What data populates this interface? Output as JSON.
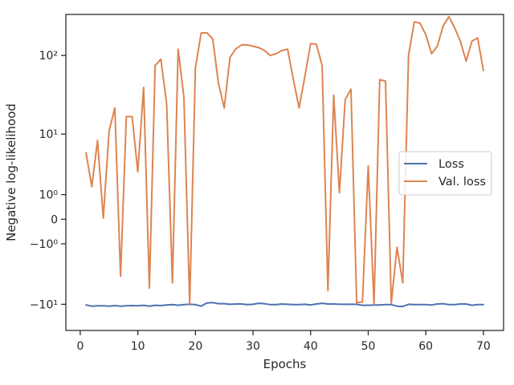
{
  "chart_data": {
    "type": "line",
    "title": "",
    "xlabel": "Epochs",
    "ylabel": "Negative log-likelihood",
    "yscale": "symlog",
    "xlim": [
      -2.5,
      73.5
    ],
    "ylim": [
      -22,
      320
    ],
    "x_ticks": [
      0,
      10,
      20,
      30,
      40,
      50,
      60,
      70
    ],
    "x_tick_labels": [
      "0",
      "10",
      "20",
      "30",
      "40",
      "50",
      "60",
      "70"
    ],
    "y_ticks": [
      -10,
      -1,
      0,
      1,
      10,
      100
    ],
    "y_tick_labels": [
      "−10¹",
      "−10⁰",
      "0",
      "10⁰",
      "10¹",
      "10²"
    ],
    "grid": false,
    "legend_position": "center-right",
    "series": [
      {
        "name": "Loss",
        "color": "#4c72b0",
        "x": [
          1,
          2,
          3,
          4,
          5,
          6,
          7,
          8,
          9,
          10,
          11,
          12,
          13,
          14,
          15,
          16,
          17,
          18,
          19,
          20,
          21,
          22,
          23,
          24,
          25,
          26,
          27,
          28,
          29,
          30,
          31,
          32,
          33,
          34,
          35,
          36,
          37,
          38,
          39,
          40,
          41,
          42,
          43,
          44,
          45,
          46,
          47,
          48,
          49,
          50,
          51,
          52,
          53,
          54,
          55,
          56,
          57,
          58,
          59,
          60,
          61,
          62,
          63,
          64,
          65,
          66,
          67,
          68,
          69,
          70
        ],
        "values": [
          -10.2,
          -10.6,
          -10.5,
          -10.5,
          -10.6,
          -10.4,
          -10.6,
          -10.5,
          -10.4,
          -10.5,
          -10.3,
          -10.6,
          -10.3,
          -10.4,
          -10.2,
          -10.1,
          -10.3,
          -10.1,
          -10.0,
          -10.1,
          -10.6,
          -9.6,
          -9.5,
          -9.8,
          -9.8,
          -10.0,
          -9.9,
          -9.9,
          -10.1,
          -10.0,
          -9.7,
          -9.8,
          -10.1,
          -10.1,
          -9.9,
          -10.0,
          -10.1,
          -10.1,
          -10.0,
          -10.2,
          -9.9,
          -9.7,
          -9.9,
          -9.9,
          -10.0,
          -10.0,
          -10.0,
          -10.0,
          -10.3,
          -10.3,
          -10.2,
          -10.2,
          -10.1,
          -10.1,
          -10.6,
          -10.7,
          -10.0,
          -10.1,
          -10.1,
          -10.1,
          -10.2,
          -9.9,
          -9.8,
          -10.1,
          -10.1,
          -9.9,
          -9.9,
          -10.3,
          -10.1,
          -10.1
        ]
      },
      {
        "name": "Val. loss",
        "color": "#dd8452",
        "x": [
          1,
          2,
          3,
          4,
          5,
          6,
          7,
          8,
          9,
          10,
          11,
          12,
          13,
          14,
          15,
          16,
          17,
          18,
          19,
          20,
          21,
          22,
          23,
          24,
          25,
          26,
          27,
          28,
          29,
          30,
          31,
          32,
          33,
          34,
          35,
          36,
          37,
          38,
          39,
          40,
          41,
          42,
          43,
          44,
          45,
          46,
          47,
          48,
          49,
          50,
          51,
          52,
          53,
          54,
          55,
          56,
          57,
          58,
          59,
          60,
          61,
          62,
          63,
          64,
          65,
          66,
          67,
          68,
          69,
          70
        ],
        "values": [
          5.5,
          1.5,
          8.2,
          0.03,
          11.0,
          22.0,
          -4.0,
          17.0,
          17.0,
          2.8,
          40.0,
          -6.0,
          75.0,
          90.0,
          25.0,
          -5.0,
          120.0,
          30.0,
          -10.0,
          70.0,
          190.0,
          190.0,
          160.0,
          45.0,
          22.0,
          95.0,
          120.0,
          135.0,
          135.0,
          130.0,
          125.0,
          115.0,
          100.0,
          105.0,
          115.0,
          120.0,
          50.0,
          22.0,
          55.0,
          140.0,
          138.0,
          75.0,
          -6.5,
          32.0,
          1.1,
          28.0,
          38.0,
          -9.5,
          -9.3,
          3.5,
          -10.0,
          50.0,
          48.0,
          -9.7,
          -1.2,
          -5.0,
          100.0,
          260.0,
          250.0,
          180.0,
          105.0,
          130.0,
          230.0,
          300.0,
          220.0,
          150.0,
          85.0,
          150.0,
          165.0,
          65.0
        ]
      }
    ]
  }
}
